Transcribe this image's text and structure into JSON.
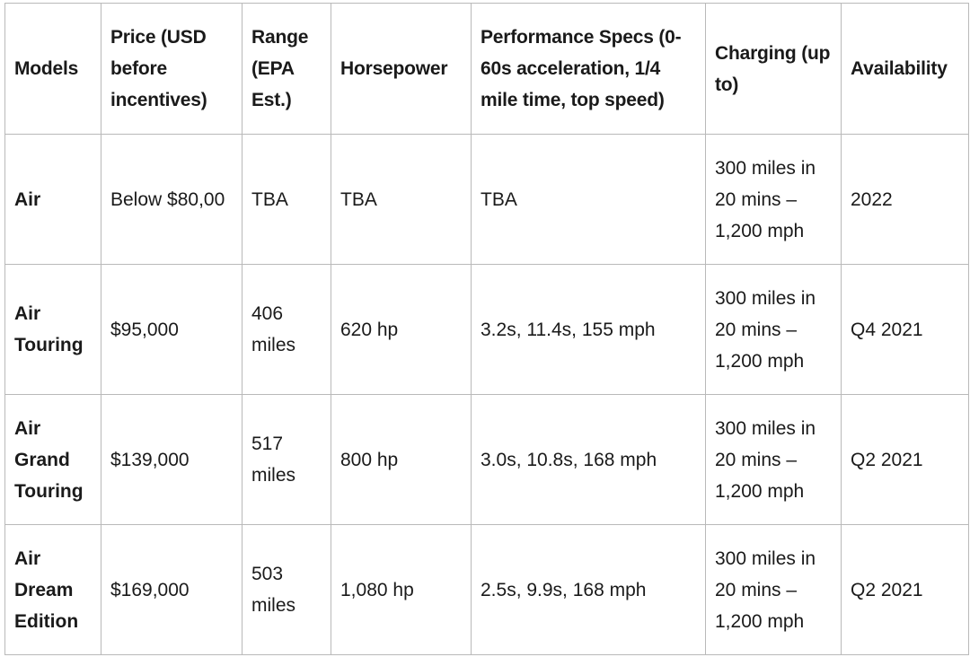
{
  "table": {
    "headers": [
      "Models",
      "Price (USD before incentives)",
      "Range (EPA Est.)",
      "Horsepower",
      "Performance Specs (0-60s acceleration, 1/4 mile time, top speed)",
      "Charging (up to)",
      "Availability"
    ],
    "rows": [
      [
        "Air",
        "Below $80,00",
        "TBA",
        "TBA",
        "TBA",
        "300 miles in 20 mins – 1,200 mph",
        "2022"
      ],
      [
        "Air Touring",
        "$95,000",
        "406 miles",
        "620 hp",
        "3.2s, 11.4s, 155 mph",
        "300 miles in 20 mins – 1,200 mph",
        "Q4 2021"
      ],
      [
        "Air Grand Touring",
        "$139,000",
        "517 miles",
        "800 hp",
        "3.0s, 10.8s, 168 mph",
        "300 miles in 20 mins – 1,200 mph",
        "Q2 2021"
      ],
      [
        "Air Dream Edition",
        "$169,000",
        "503 miles",
        "1,080 hp",
        "2.5s, 9.9s, 168 mph",
        "300 miles in 20 mins – 1,200 mph",
        "Q2 2021"
      ]
    ]
  }
}
